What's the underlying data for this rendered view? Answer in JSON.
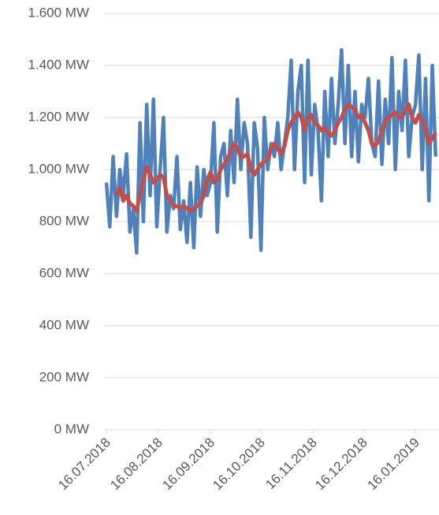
{
  "chart_data": {
    "type": "line",
    "x": [
      "16.07.2018",
      "18.07.2018",
      "20.07.2018",
      "22.07.2018",
      "24.07.2018",
      "26.07.2018",
      "28.07.2018",
      "30.07.2018",
      "01.08.2018",
      "03.08.2018",
      "05.08.2018",
      "07.08.2018",
      "09.08.2018",
      "11.08.2018",
      "13.08.2018",
      "15.08.2018",
      "17.08.2018",
      "19.08.2018",
      "21.08.2018",
      "23.08.2018",
      "25.08.2018",
      "27.08.2018",
      "29.08.2018",
      "31.08.2018",
      "02.09.2018",
      "04.09.2018",
      "06.09.2018",
      "08.09.2018",
      "10.09.2018",
      "12.09.2018",
      "14.09.2018",
      "16.09.2018",
      "18.09.2018",
      "20.09.2018",
      "22.09.2018",
      "24.09.2018",
      "26.09.2018",
      "28.09.2018",
      "30.09.2018",
      "02.10.2018",
      "04.10.2018",
      "06.10.2018",
      "08.10.2018",
      "10.10.2018",
      "12.10.2018",
      "14.10.2018",
      "16.10.2018",
      "18.10.2018",
      "20.10.2018",
      "22.10.2018",
      "24.10.2018",
      "26.10.2018",
      "28.10.2018",
      "30.10.2018",
      "01.11.2018",
      "03.11.2018",
      "05.11.2018",
      "07.11.2018",
      "09.11.2018",
      "11.11.2018",
      "13.11.2018",
      "15.11.2018",
      "17.11.2018",
      "19.11.2018",
      "21.11.2018",
      "23.11.2018",
      "25.11.2018",
      "27.11.2018",
      "29.11.2018",
      "01.12.2018",
      "03.12.2018",
      "05.12.2018",
      "07.12.2018",
      "09.12.2018",
      "11.12.2018",
      "13.12.2018",
      "15.12.2018",
      "17.12.2018",
      "19.12.2018",
      "21.12.2018",
      "23.12.2018",
      "25.12.2018",
      "27.12.2018",
      "29.12.2018",
      "31.12.2018",
      "02.01.2019",
      "04.01.2019",
      "06.01.2019",
      "08.01.2019",
      "10.01.2019",
      "12.01.2019",
      "14.01.2019",
      "16.01.2019",
      "18.01.2019",
      "20.01.2019",
      "22.01.2019",
      "24.01.2019",
      "26.01.2019",
      "28.01.2019"
    ],
    "series": [
      {
        "color": "#4f81bd",
        "values": [
          950,
          780,
          1050,
          820,
          1000,
          900,
          1060,
          760,
          850,
          680,
          1180,
          800,
          1250,
          900,
          1270,
          780,
          1000,
          1200,
          760,
          900,
          850,
          1050,
          770,
          880,
          720,
          950,
          700,
          1010,
          820,
          1000,
          900,
          950,
          1180,
          760,
          1050,
          1100,
          900,
          1150,
          950,
          1270,
          1000,
          1180,
          1100,
          740,
          1180,
          1080,
          690,
          1200,
          1000,
          1100,
          1050,
          1180,
          1000,
          1100,
          1200,
          1420,
          1000,
          1300,
          1400,
          950,
          1420,
          980,
          1250,
          1150,
          880,
          1300,
          1050,
          1350,
          1100,
          1250,
          1460,
          1100,
          1400,
          1050,
          1300,
          1030,
          1250,
          1200,
          1350,
          1100,
          1050,
          1340,
          1020,
          1270,
          1100,
          1430,
          1000,
          1300,
          1150,
          1420,
          1050,
          1200,
          1250,
          1440,
          1000,
          1350,
          880,
          1400,
          1050
        ]
      },
      {
        "color": "#c0504d",
        "values": [
          null,
          null,
          null,
          900,
          930,
          880,
          900,
          870,
          860,
          840,
          900,
          960,
          1010,
          980,
          950,
          960,
          980,
          970,
          900,
          880,
          860,
          860,
          850,
          860,
          850,
          840,
          850,
          860,
          870,
          900,
          960,
          990,
          950,
          960,
          1000,
          1020,
          1040,
          1070,
          1100,
          1080,
          1050,
          1050,
          1060,
          1000,
          980,
          1000,
          1020,
          1030,
          1040,
          1080,
          1100,
          1080,
          1060,
          1090,
          1150,
          1180,
          1200,
          1220,
          1200,
          1150,
          1200,
          1210,
          1180,
          1170,
          1150,
          1160,
          1140,
          1130,
          1150,
          1180,
          1200,
          1230,
          1250,
          1240,
          1230,
          1200,
          1210,
          1180,
          1150,
          1100,
          1090,
          1110,
          1150,
          1180,
          1200,
          1210,
          1220,
          1200,
          1200,
          1230,
          1250,
          1200,
          1180,
          1210,
          1190,
          1150,
          1100,
          1120,
          1140
        ]
      }
    ],
    "xlim": [
      "16.07.2018",
      "30.01.2019"
    ],
    "xticks": [
      "16.07.2018",
      "16.08.2018",
      "16.09.2018",
      "16.10.2018",
      "16.11.2018",
      "16.12.2018",
      "16.01.2019"
    ],
    "ylim": [
      0,
      1600
    ],
    "yticks": [
      {
        "value": 0,
        "label": "0 MW"
      },
      {
        "value": 200,
        "label": "200 MW"
      },
      {
        "value": 400,
        "label": "400 MW"
      },
      {
        "value": 600,
        "label": "600 MW"
      },
      {
        "value": 800,
        "label": "800 MW"
      },
      {
        "value": 1000,
        "label": "1.000 MW"
      },
      {
        "value": 1200,
        "label": "1.200 MW"
      },
      {
        "value": 1400,
        "label": "1.400 MW"
      },
      {
        "value": 1600,
        "label": "1.600 MW"
      }
    ],
    "grid": true
  }
}
